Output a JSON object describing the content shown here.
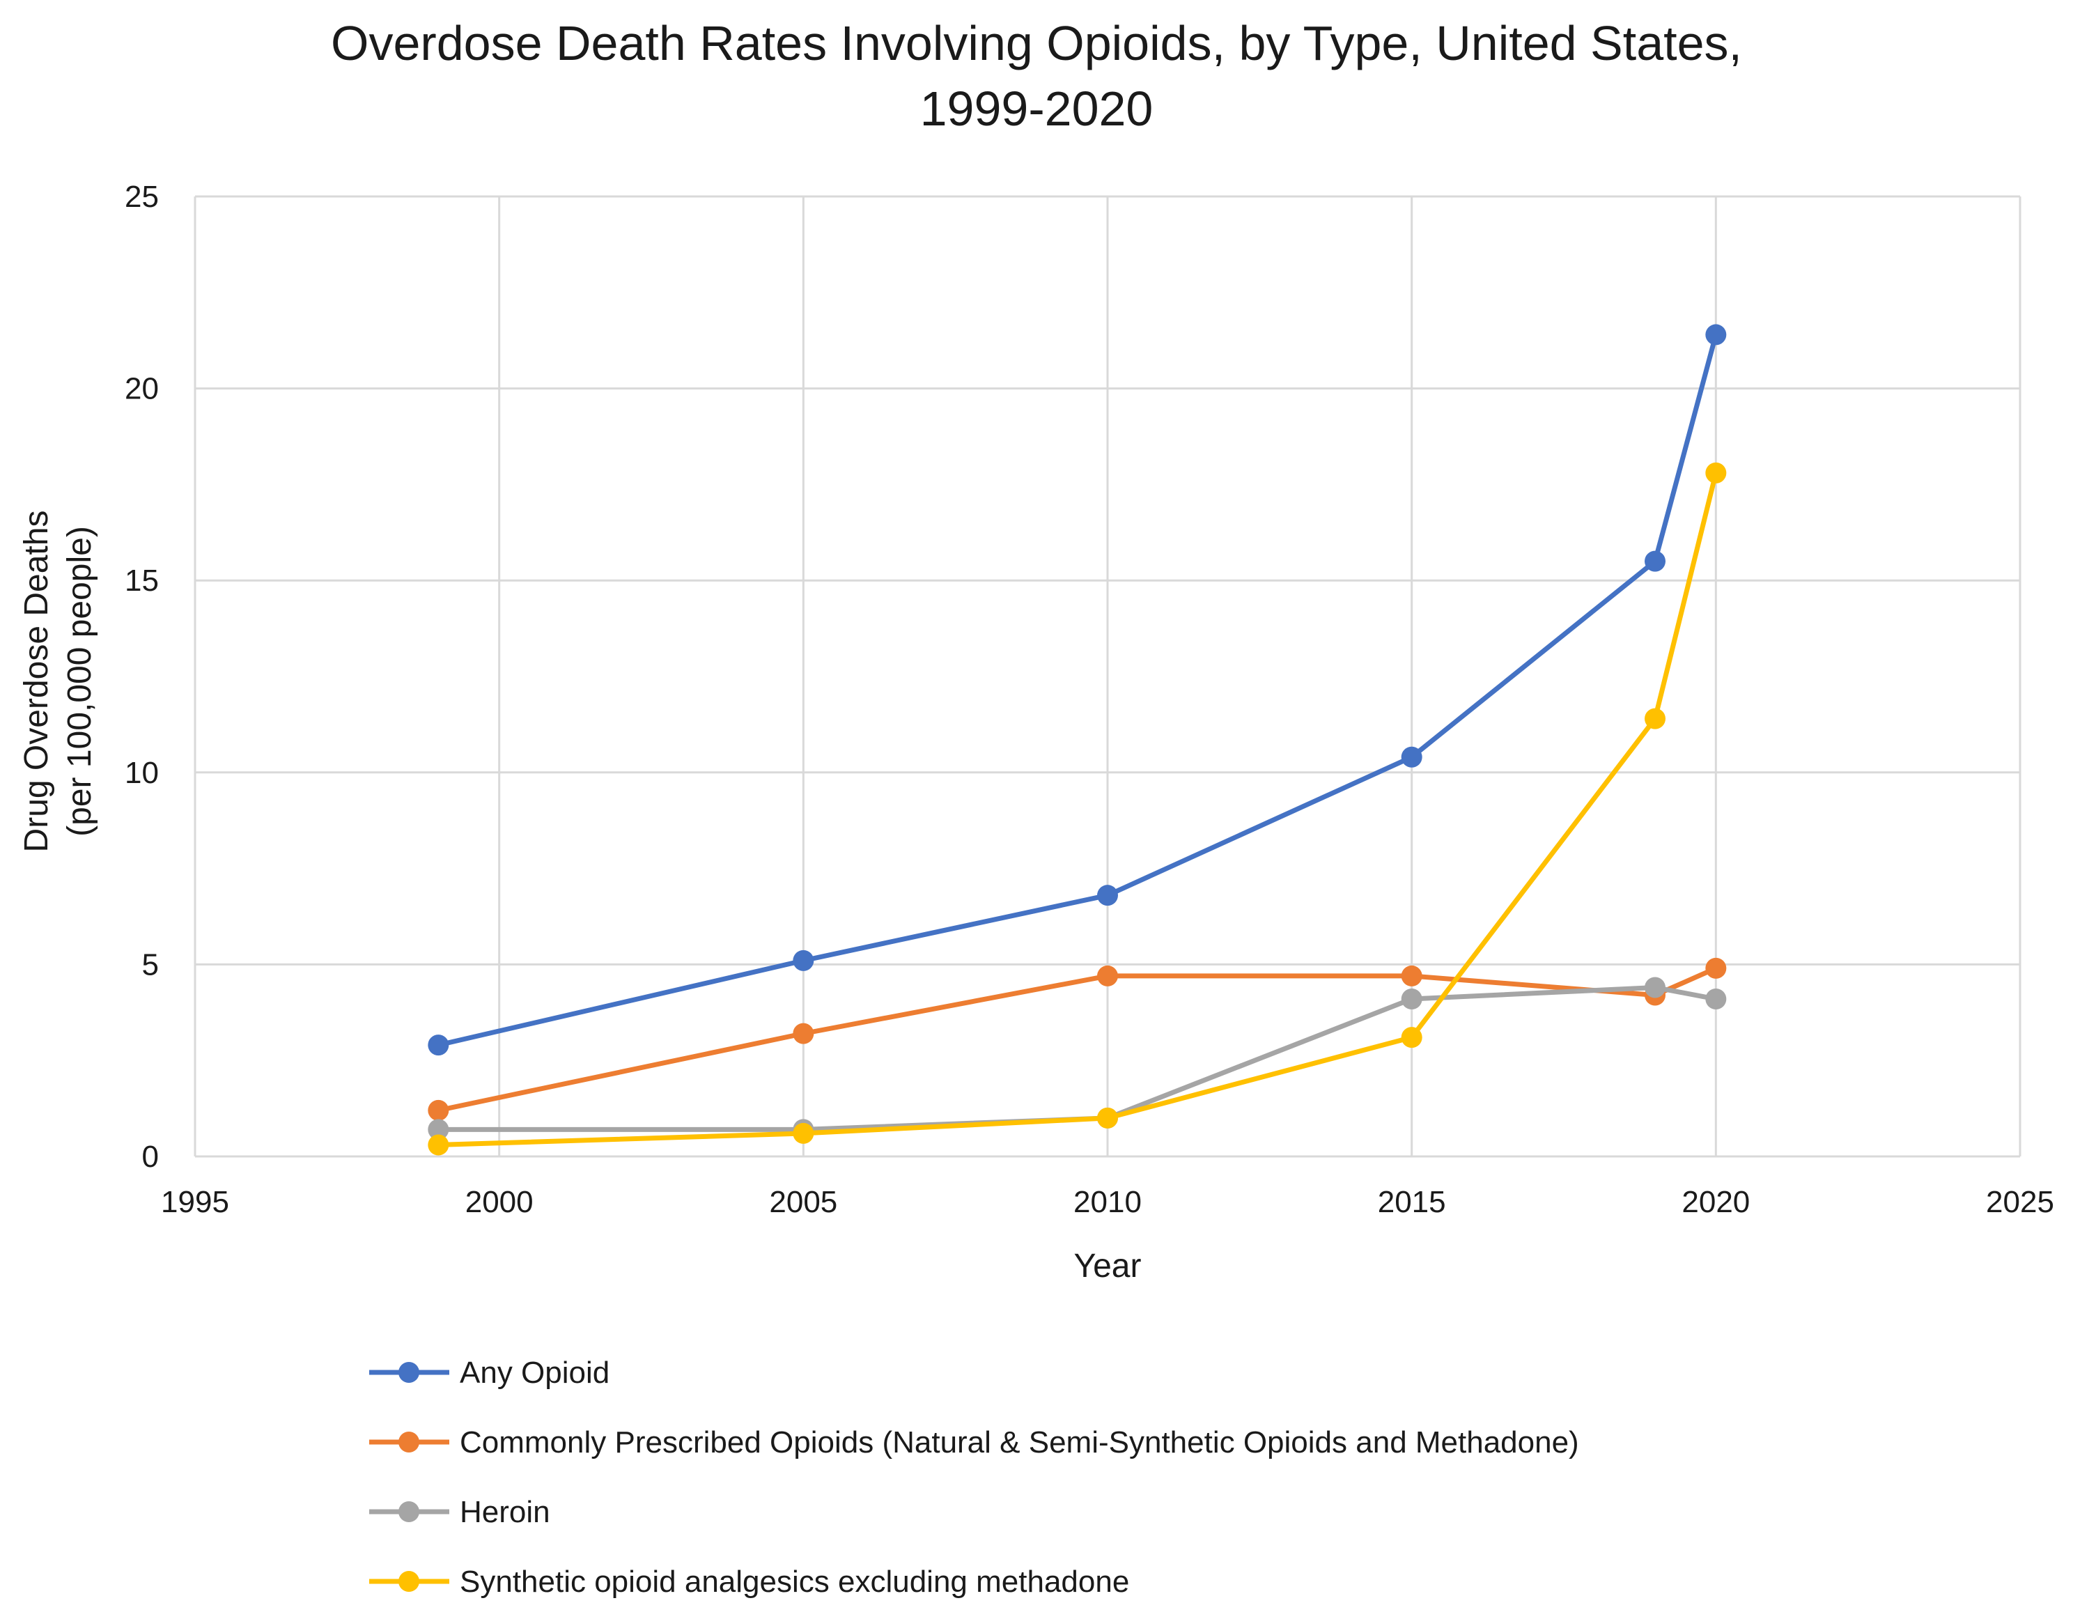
{
  "chart_data": {
    "type": "line",
    "title_lines": [
      "Overdose Death Rates Involving Opioids, by Type, United States,",
      "1999-2020"
    ],
    "xlabel": "Year",
    "ylabel_lines": [
      "Drug Overdose Deaths",
      "(per 100,000 people)"
    ],
    "xlim": [
      1995,
      2025
    ],
    "ylim": [
      0,
      25
    ],
    "x_ticks": [
      1995,
      2000,
      2005,
      2010,
      2015,
      2020,
      2025
    ],
    "y_ticks": [
      0,
      5,
      10,
      15,
      20,
      25
    ],
    "grid": true,
    "legend_position": "bottom",
    "x": [
      1999,
      2005,
      2010,
      2015,
      2019,
      2020
    ],
    "series": [
      {
        "name": "Any Opioid",
        "color": "#4472C4",
        "values": [
          2.9,
          5.1,
          6.8,
          10.4,
          15.5,
          21.4
        ]
      },
      {
        "name": "Commonly Prescribed Opioids (Natural & Semi-Synthetic Opioids and Methadone)",
        "color": "#ED7D31",
        "values": [
          1.2,
          3.2,
          4.7,
          4.7,
          4.2,
          4.9
        ]
      },
      {
        "name": "Heroin",
        "color": "#A5A5A5",
        "values": [
          0.7,
          0.7,
          1.0,
          4.1,
          4.4,
          4.1
        ]
      },
      {
        "name": "Synthetic opioid analgesics excluding methadone",
        "color": "#FFC000",
        "values": [
          0.3,
          0.6,
          1.0,
          3.1,
          11.4,
          17.8
        ]
      }
    ]
  }
}
